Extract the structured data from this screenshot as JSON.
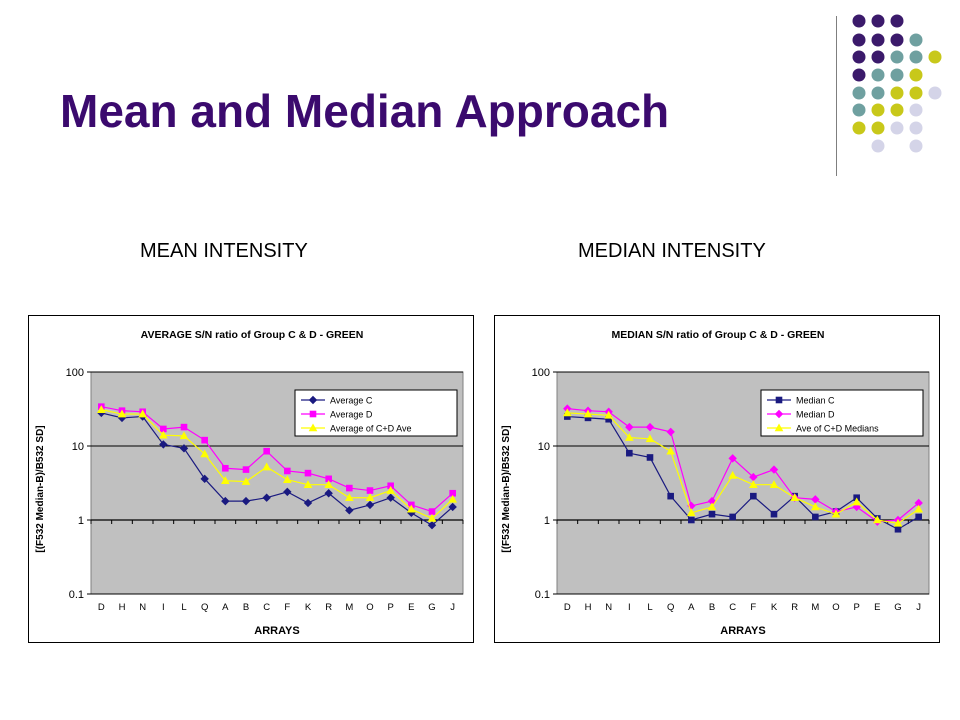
{
  "slide": {
    "title": "Mean and Median Approach",
    "subtitle_left": "MEAN INTENSITY",
    "subtitle_right": "MEDIAN INTENSITY",
    "title_color": "#3b0a6e",
    "decor_colors": [
      "#3b1a6b",
      "#6fa0a0",
      "#c8c81a",
      "#d4d4e8"
    ]
  },
  "chart_data": [
    {
      "type": "line",
      "title": "AVERAGE S/N ratio of Group C & D - GREEN",
      "xlabel": "ARRAYS",
      "ylabel": "[(F532 Median-B)/B532 SD]",
      "yscale": "log",
      "ylim": [
        0.1,
        100
      ],
      "yticks": [
        "0.1",
        "1",
        "10",
        "100"
      ],
      "grid": "horizontal",
      "plot_background": "#c0c0c0",
      "legend_position": "top-right",
      "categories": [
        "D",
        "H",
        "N",
        "I",
        "L",
        "Q",
        "A",
        "B",
        "C",
        "F",
        "K",
        "R",
        "M",
        "O",
        "P",
        "E",
        "G",
        "J"
      ],
      "series": [
        {
          "name": "Average C",
          "color": "#1a1a80",
          "marker": "diamond",
          "values": [
            28,
            24,
            25,
            10.5,
            9.3,
            3.6,
            1.8,
            1.8,
            2.0,
            2.4,
            1.7,
            2.3,
            1.35,
            1.6,
            2.0,
            1.25,
            0.85,
            1.5
          ]
        },
        {
          "name": "Average D",
          "color": "#ff00ff",
          "marker": "square",
          "values": [
            34,
            30,
            29,
            17,
            18,
            12,
            5.0,
            4.8,
            8.5,
            4.6,
            4.3,
            3.6,
            2.7,
            2.5,
            2.9,
            1.6,
            1.3,
            2.3
          ]
        },
        {
          "name": "Average of C+D Ave",
          "color": "#ffff00",
          "marker": "triangle",
          "values": [
            31,
            27,
            27,
            14,
            13.7,
            7.8,
            3.4,
            3.3,
            5.2,
            3.5,
            3.0,
            3.0,
            2.0,
            2.0,
            2.5,
            1.4,
            1.05,
            1.9
          ]
        }
      ]
    },
    {
      "type": "line",
      "title": "MEDIAN S/N ratio of Group C & D - GREEN",
      "xlabel": "ARRAYS",
      "ylabel": "[(F532 Median-B)/B532 SD]",
      "yscale": "log",
      "ylim": [
        0.1,
        100
      ],
      "yticks": [
        "0.1",
        "1",
        "10",
        "100"
      ],
      "grid": "horizontal",
      "plot_background": "#c0c0c0",
      "legend_position": "top-right",
      "categories": [
        "D",
        "H",
        "N",
        "I",
        "L",
        "Q",
        "A",
        "B",
        "C",
        "F",
        "K",
        "R",
        "M",
        "O",
        "P",
        "E",
        "G",
        "J"
      ],
      "series": [
        {
          "name": "Median C",
          "color": "#1a1a80",
          "marker": "square",
          "values": [
            25,
            24,
            23,
            8.0,
            7.0,
            2.1,
            1.0,
            1.2,
            1.1,
            2.1,
            1.2,
            2.1,
            1.1,
            1.3,
            2.0,
            1.05,
            0.75,
            1.1
          ]
        },
        {
          "name": "Median D",
          "color": "#ff00ff",
          "marker": "diamond",
          "values": [
            32,
            30,
            29,
            18,
            18,
            15.5,
            1.55,
            1.8,
            6.8,
            3.8,
            4.8,
            2.0,
            1.9,
            1.3,
            1.5,
            0.95,
            1.0,
            1.7
          ]
        },
        {
          "name": "Ave of C+D Medians",
          "color": "#ffff00",
          "marker": "triangle",
          "values": [
            28,
            27,
            26,
            13,
            12.5,
            8.5,
            1.25,
            1.5,
            4.0,
            3.0,
            3.0,
            2.0,
            1.5,
            1.2,
            1.75,
            1.0,
            0.9,
            1.4
          ]
        }
      ]
    }
  ]
}
